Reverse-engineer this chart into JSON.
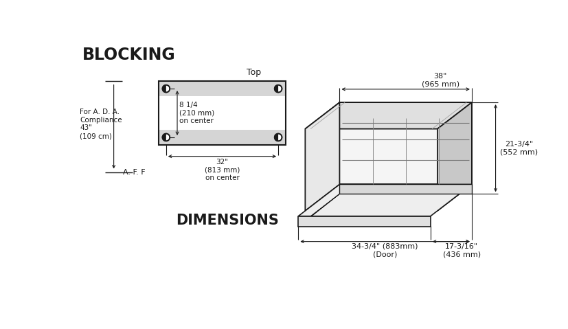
{
  "bg_color": "#ffffff",
  "title_blocking": "BLOCKING",
  "title_dimensions": "DIMENSIONS",
  "label_top": "Top",
  "label_aff": "A. F. F",
  "label_ada": "For A. D. A.\nCompliance\n43\"\n(109 cm)",
  "label_8_1_4": "8 1/4\n(210 mm)\non center",
  "label_32": "32\"\n(813 mm)\non center",
  "label_38": "38\"\n(965 mm)",
  "label_21_3_4": "21-3/4\"\n(552 mm)",
  "label_34_3_4": "34-3/4\" (883mm)\n(Door)",
  "label_17_3_16": "17-3/16\"\n(436 mm)",
  "strip_color": "#d5d5d5",
  "line_color": "#1a1a1a",
  "font_color": "#1a1a1a",
  "face_light": "#f2f2f2",
  "face_mid": "#e0e0e0",
  "face_dark": "#c8c8c8"
}
